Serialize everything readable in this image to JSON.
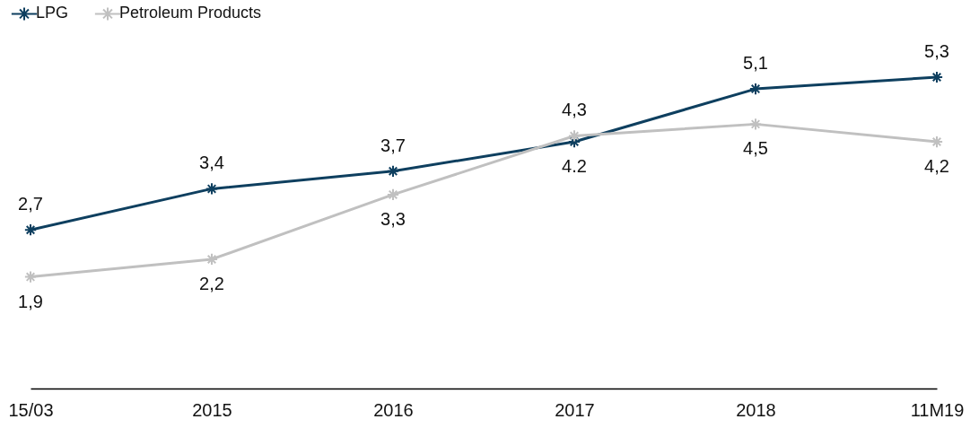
{
  "chart_data": {
    "type": "line",
    "categories": [
      "15/03",
      "2015",
      "2016",
      "2017",
      "2018",
      "11M19"
    ],
    "series": [
      {
        "name": "LPG",
        "color": "#0e3f5f",
        "values": [
          2.7,
          3.4,
          3.7,
          4.2,
          5.1,
          5.3
        ],
        "value_labels": [
          "2,7",
          "3,4",
          "3,7",
          "4.2",
          "5,1",
          "5,3"
        ]
      },
      {
        "name": "Petroleum Products",
        "color": "#c0c0c0",
        "values": [
          1.9,
          2.2,
          3.3,
          4.3,
          4.5,
          4.2
        ],
        "value_labels": [
          "1,9",
          "2,2",
          "3,3",
          "4,3",
          "4,5",
          "4,2"
        ]
      }
    ],
    "legend": "top left",
    "marker": "cross",
    "line_style": "solid"
  }
}
